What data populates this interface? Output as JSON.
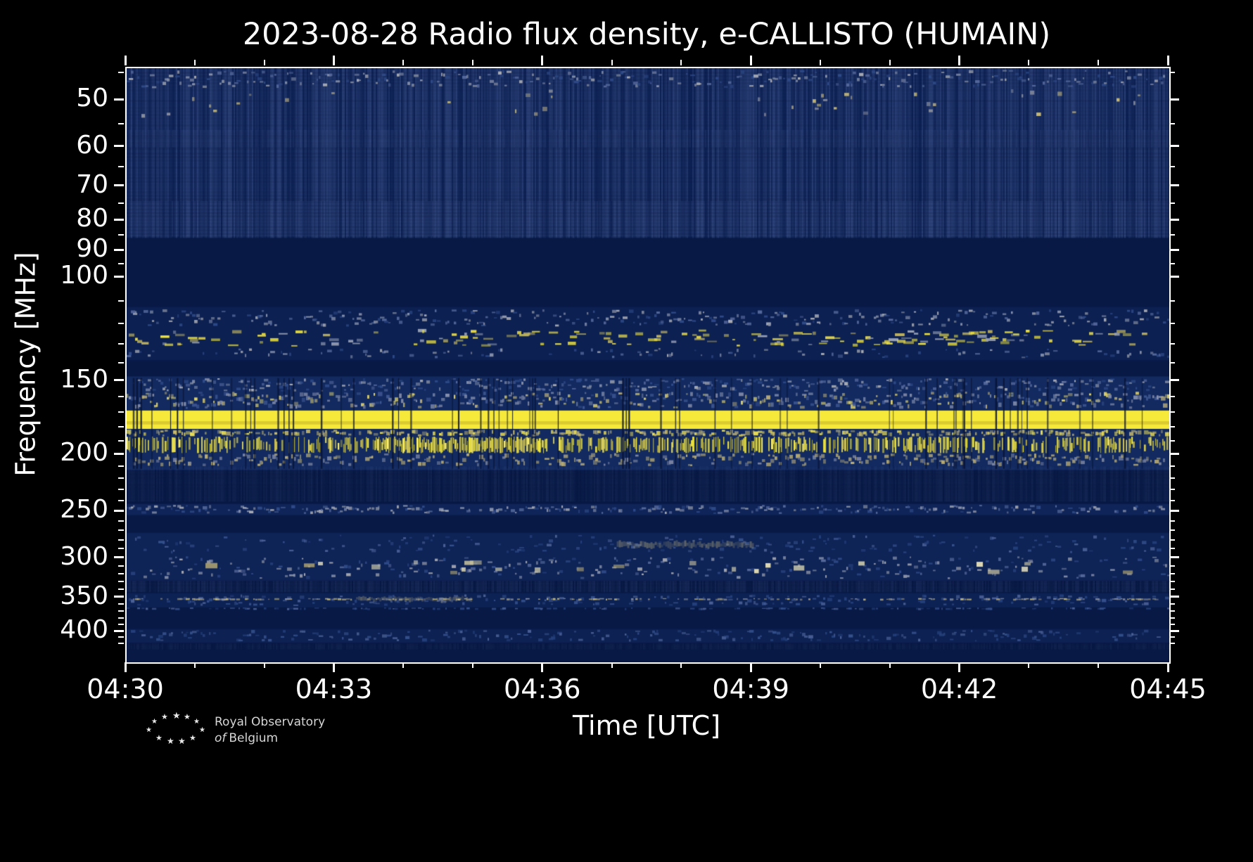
{
  "chart_data": {
    "type": "heatmap",
    "title": "2023-08-28 Radio flux density, e-CALLISTO (HUMAIN)",
    "xlabel": "Time [UTC]",
    "ylabel": "Frequency [MHz]",
    "x_ticks": [
      "04:30",
      "04:33",
      "04:36",
      "04:39",
      "04:42",
      "04:45"
    ],
    "x_minor_divisions": 15,
    "y_ticks": [
      50,
      60,
      70,
      80,
      90,
      100,
      150,
      200,
      250,
      300,
      350,
      400
    ],
    "y_minor_ticks": [
      45,
      55,
      65,
      75,
      85,
      95,
      110,
      120,
      130,
      140,
      160,
      170,
      180,
      190,
      210,
      220,
      230,
      240,
      260,
      270,
      280,
      290,
      310,
      320,
      330,
      340,
      360,
      370,
      380,
      390,
      410,
      420
    ],
    "y_scale": "log",
    "y_range": [
      44,
      450
    ],
    "time_span_min": 15,
    "legend": "none",
    "grid": false,
    "colors": {
      "background": "#000000",
      "base": "#081945",
      "frame": "#ffffff",
      "text": "#ffffff",
      "noise_rgb": "96,120,180",
      "smear_rgb": "205,190,130",
      "dropout_rgb": "8,18,50",
      "bright_line": "#f6e93a",
      "palettes": {
        "blue": [
          "#2a4685",
          "#3c5a97",
          "#56709f"
        ],
        "bluefaint": [
          "#24407c",
          "#34508c",
          "#4a6096"
        ],
        "bluegray": [
          "#2e4a88",
          "#55689c",
          "#8791ab",
          "#a8abb4"
        ],
        "tan": [
          "#b9ab72",
          "#d0c07b",
          "#e3d58a"
        ],
        "tanfaint": [
          "#8a8f9e",
          "#a89f7e",
          "#c4b878"
        ],
        "tanwhite": [
          "#cfc8a0",
          "#e0dab4",
          "#b9ab72",
          "#efe9c8"
        ],
        "mixed": [
          "#3d5590",
          "#7d86a5",
          "#b3a878",
          "#ddd06e",
          "#8a93b0"
        ],
        "tanyellow": [
          "#c9ba6a",
          "#e8dc55",
          "#a5a07b"
        ],
        "yellow": [
          "#e8dc42",
          "#f5ea3c",
          "#fff26a",
          "#d8c94f"
        ],
        "yellowmix": [
          "#e3d64e",
          "#f2e63c",
          "#c0b35e",
          "#97a0b5"
        ],
        "tanfade": [
          "#9e9878",
          "#bcae72",
          "#7a83a0"
        ]
      }
    },
    "bands": [
      {
        "f0": 44,
        "f1": 85.5,
        "mode": "shade",
        "color": "#0d2154"
      },
      {
        "f0": 112,
        "f1": 138,
        "mode": "shade",
        "color": "#0c2052"
      },
      {
        "f0": 147,
        "f1": 212,
        "mode": "shade",
        "color": "#122a60"
      },
      {
        "f0": 242,
        "f1": 253,
        "mode": "shade",
        "color": "#0f2458"
      },
      {
        "f0": 271,
        "f1": 327,
        "mode": "shade",
        "color": "#0e2356"
      },
      {
        "f0": 343,
        "f1": 363,
        "mode": "shade",
        "color": "#0d2254"
      },
      {
        "f0": 395,
        "f1": 417,
        "mode": "shade",
        "color": "#0d2152"
      },
      {
        "f0": 44,
        "f1": 85.5,
        "mode": "noise",
        "density": 0.34
      },
      {
        "f0": 44.3,
        "f1": 47.6,
        "mode": "speckle",
        "palette": "bluegray",
        "density": 0.6,
        "h": 3
      },
      {
        "f0": 47.6,
        "f1": 53.5,
        "mode": "speckle",
        "palette": "tanfaint",
        "density": 0.05,
        "h": 4,
        "hotspots": [
          [
            0.06,
            0.11,
            2.5
          ],
          [
            0.6,
            0.78,
            3.5
          ],
          [
            0.84,
            0.9,
            2.5
          ],
          [
            0.96,
            1.0,
            2.0
          ]
        ]
      },
      {
        "f0": 56,
        "f1": 60,
        "mode": "noise",
        "density": 0.15
      },
      {
        "f0": 74,
        "f1": 85,
        "mode": "noise",
        "density": 0.18
      },
      {
        "f0": 113,
        "f1": 121,
        "mode": "speckle",
        "palette": "bluegray",
        "density": 0.55,
        "h": 3
      },
      {
        "f0": 122,
        "f1": 131,
        "mode": "dashes",
        "palette": "yellowmix",
        "density": 0.32
      },
      {
        "f0": 131.5,
        "f1": 137,
        "mode": "speckle",
        "palette": "bluegray",
        "density": 0.22,
        "h": 3
      },
      {
        "f0": 148,
        "f1": 156,
        "mode": "speckle",
        "palette": "bluegray",
        "density": 0.7,
        "h": 3
      },
      {
        "f0": 156,
        "f1": 167,
        "mode": "speckle",
        "palette": "mixed",
        "density": 0.85,
        "h": 4
      },
      {
        "f0": 168,
        "f1": 180.5,
        "mode": "solid",
        "color": "#f6e93a"
      },
      {
        "f0": 181,
        "f1": 186,
        "mode": "speckle",
        "palette": "tanyellow",
        "density": 0.6,
        "h": 4
      },
      {
        "f0": 186,
        "f1": 198.5,
        "mode": "burst",
        "palette": "yellow",
        "density": 0.5,
        "hotspots": [
          [
            0.24,
            0.4,
            1.9
          ],
          [
            0.42,
            0.5,
            1.3
          ],
          [
            0.62,
            0.68,
            1.3
          ],
          [
            0.75,
            0.82,
            1.2
          ]
        ]
      },
      {
        "f0": 198.5,
        "f1": 209,
        "mode": "speckle",
        "palette": "tanfade",
        "density": 0.6,
        "h": 4
      },
      {
        "f0": 209,
        "f1": 240,
        "mode": "noise",
        "density": 0.12
      },
      {
        "f0": 243,
        "f1": 252,
        "mode": "speckle",
        "palette": "bluegray",
        "density": 0.55,
        "h": 3
      },
      {
        "f0": 273,
        "f1": 294,
        "mode": "speckle",
        "palette": "bluefaint",
        "density": 0.35,
        "h": 3
      },
      {
        "f0": 279,
        "f1": 289,
        "mode": "smear",
        "density": 0.55,
        "hotspots": [
          [
            0.47,
            0.6,
            1
          ]
        ]
      },
      {
        "f0": 297,
        "f1": 325,
        "mode": "speckle",
        "palette": "bluegray",
        "density": 0.55,
        "h": 3
      },
      {
        "f0": 301,
        "f1": 319,
        "mode": "blobs",
        "palette": "tanwhite",
        "density": 0.05,
        "hotspots": [
          [
            0.07,
            0.12,
            2.2
          ],
          [
            0.24,
            0.34,
            2.8
          ],
          [
            0.34,
            0.43,
            1.8
          ],
          [
            0.52,
            0.58,
            1.6
          ],
          [
            0.62,
            0.69,
            1.5
          ],
          [
            0.77,
            0.89,
            2.8
          ],
          [
            0.92,
            0.97,
            1.6
          ]
        ]
      },
      {
        "f0": 327,
        "f1": 342,
        "mode": "noise",
        "density": 0.16
      },
      {
        "f0": 345,
        "f1": 361,
        "mode": "speckle",
        "palette": "bluefaint",
        "density": 0.4,
        "h": 3
      },
      {
        "f0": 347,
        "f1": 356,
        "mode": "smear",
        "density": 0.5,
        "hotspots": [
          [
            0.22,
            0.33,
            1
          ]
        ]
      },
      {
        "f0": 350,
        "f1": 352.5,
        "mode": "speckle",
        "palette": "tanfaint",
        "density": 0.35,
        "h": 2
      },
      {
        "f0": 363,
        "f1": 366,
        "mode": "speckle",
        "palette": "bluefaint",
        "density": 0.25,
        "h": 2
      },
      {
        "f0": 396,
        "f1": 415,
        "mode": "speckle",
        "palette": "bluefaint",
        "density": 0.45,
        "h": 3
      },
      {
        "f0": 418,
        "f1": 428,
        "mode": "noise",
        "density": 0.1
      }
    ],
    "dropouts": {
      "f0": 148,
      "f1": 211,
      "count": 70
    }
  },
  "footer": {
    "logo_line1": "Royal Observatory",
    "logo_line2_em": "of",
    "logo_line2_rest": "Belgium"
  }
}
